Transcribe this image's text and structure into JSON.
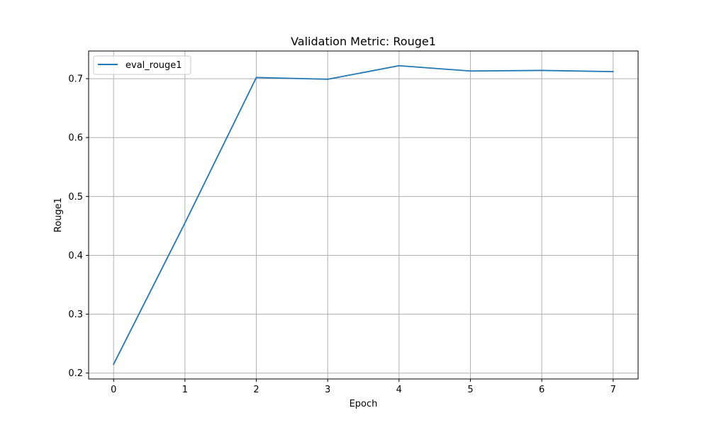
{
  "chart_data": {
    "type": "line",
    "title": "Validation Metric: Rouge1",
    "xlabel": "Epoch",
    "ylabel": "Rouge1",
    "x": [
      0,
      1,
      2,
      3,
      4,
      5,
      6,
      7
    ],
    "xticks": [
      "0",
      "1",
      "2",
      "3",
      "4",
      "5",
      "6",
      "7"
    ],
    "yticks": [
      "0.2",
      "0.3",
      "0.4",
      "0.5",
      "0.6",
      "0.7"
    ],
    "ytick_values": [
      0.2,
      0.3,
      0.4,
      0.5,
      0.6,
      0.7
    ],
    "xlim": [
      -0.35,
      7.35
    ],
    "ylim": [
      0.19,
      0.747
    ],
    "grid": true,
    "legend_position": "top-left",
    "series": [
      {
        "name": "eval_rouge1",
        "color": "#1f77b4",
        "values": [
          0.215,
          0.455,
          0.702,
          0.699,
          0.722,
          0.713,
          0.714,
          0.712
        ]
      }
    ]
  }
}
